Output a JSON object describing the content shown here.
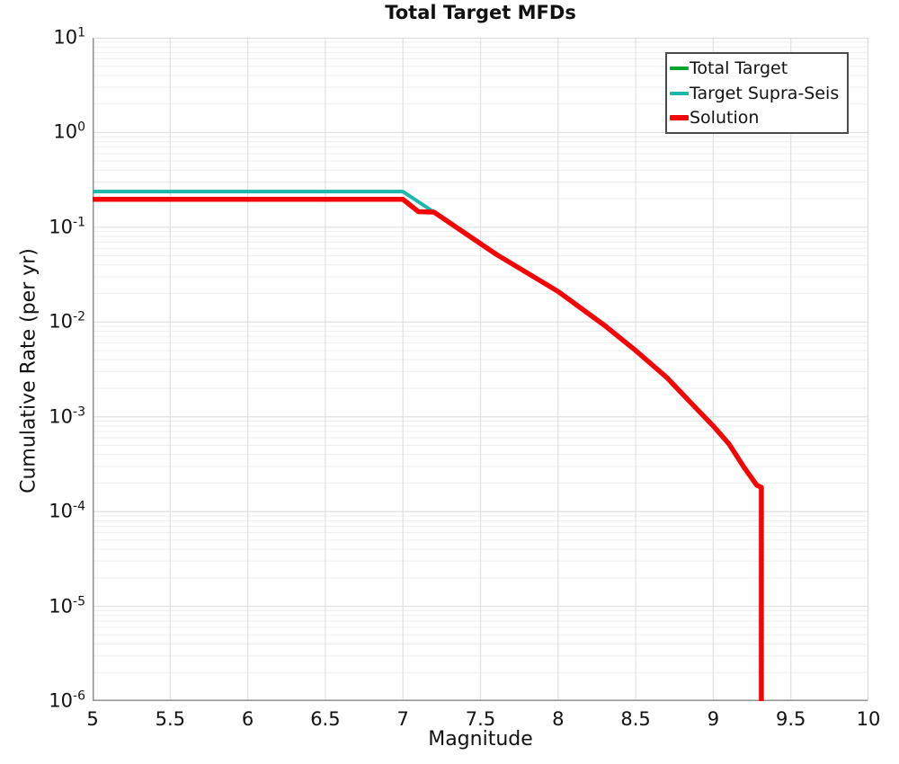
{
  "figure": {
    "title": "Total Target MFDs"
  },
  "axes": {
    "x_label": "Magnitude",
    "y_label": "Cumulative Rate (per yr)"
  },
  "legend": {
    "position": "upper right",
    "items": [
      {
        "label": "Total Target",
        "color": "#00a42a",
        "line_width": 4
      },
      {
        "label": "Target Supra-Seis",
        "color": "#1cb8ab",
        "line_width": 4
      },
      {
        "label": "Solution",
        "color": "#f50404",
        "line_width": 6
      }
    ]
  },
  "chart_data": {
    "type": "line",
    "title": "Total Target MFDs",
    "xlabel": "Magnitude",
    "ylabel": "Cumulative Rate (per yr)",
    "xlim": [
      5,
      10
    ],
    "ylim": [
      1e-06,
      10
    ],
    "yscale": "log",
    "grid": true,
    "legend_position": "upper right",
    "xticks": [
      {
        "value": 5,
        "label": "5"
      },
      {
        "value": 5.5,
        "label": "5.5"
      },
      {
        "value": 6,
        "label": "6"
      },
      {
        "value": 6.5,
        "label": "6.5"
      },
      {
        "value": 7,
        "label": "7"
      },
      {
        "value": 7.5,
        "label": "7.5"
      },
      {
        "value": 8,
        "label": "8"
      },
      {
        "value": 8.5,
        "label": "8.5"
      },
      {
        "value": 9,
        "label": "9"
      },
      {
        "value": 9.5,
        "label": "9.5"
      },
      {
        "value": 10,
        "label": "10"
      }
    ],
    "ytick_exponents": [
      1,
      0,
      -1,
      -2,
      -3,
      -4,
      -5,
      -6
    ],
    "series": [
      {
        "name": "Total Target",
        "color": "#00a42a",
        "width": 3.5,
        "points": [
          [
            5.0,
            0.238
          ],
          [
            7.0,
            0.238
          ],
          [
            7.2,
            0.1445
          ],
          [
            7.6,
            0.052
          ],
          [
            8.0,
            0.021
          ],
          [
            8.3,
            0.0092
          ],
          [
            8.5,
            0.005
          ],
          [
            8.7,
            0.0026
          ],
          [
            8.9,
            0.00118
          ],
          [
            9.0,
            0.0008
          ],
          [
            9.1,
            0.00052
          ],
          [
            9.2,
            0.00029
          ],
          [
            9.28,
            0.00019
          ],
          [
            9.31,
            0.00018
          ],
          [
            9.31,
            1e-06
          ]
        ]
      },
      {
        "name": "Target Supra-Seis",
        "color": "#1cb8ab",
        "width": 4,
        "points": [
          [
            5.0,
            0.238
          ],
          [
            7.0,
            0.238
          ],
          [
            7.2,
            0.1445
          ],
          [
            7.6,
            0.052
          ],
          [
            8.0,
            0.021
          ],
          [
            8.3,
            0.0092
          ],
          [
            8.5,
            0.005
          ],
          [
            8.7,
            0.0026
          ],
          [
            8.9,
            0.00118
          ],
          [
            9.0,
            0.0008
          ],
          [
            9.1,
            0.00052
          ],
          [
            9.2,
            0.00029
          ],
          [
            9.28,
            0.00019
          ],
          [
            9.31,
            0.00018
          ],
          [
            9.31,
            1e-06
          ]
        ]
      },
      {
        "name": "Solution",
        "color": "#f50404",
        "width": 5.5,
        "points": [
          [
            5.0,
            0.197
          ],
          [
            7.0,
            0.197
          ],
          [
            7.1,
            0.146
          ],
          [
            7.2,
            0.1445
          ],
          [
            7.6,
            0.052
          ],
          [
            8.0,
            0.021
          ],
          [
            8.3,
            0.0092
          ],
          [
            8.5,
            0.005
          ],
          [
            8.7,
            0.0026
          ],
          [
            8.9,
            0.00118
          ],
          [
            9.0,
            0.0008
          ],
          [
            9.1,
            0.00052
          ],
          [
            9.2,
            0.00029
          ],
          [
            9.28,
            0.00019
          ],
          [
            9.31,
            0.00018
          ],
          [
            9.31,
            1e-06
          ]
        ]
      }
    ],
    "colors": {
      "grid_minor": "#ededed",
      "grid_major": "#e0e0e0",
      "spine_dark": "#929292",
      "spine_light": "#d9d9d9",
      "tick": "#8a8a8a",
      "text": "#111111",
      "background": "#ffffff"
    }
  }
}
